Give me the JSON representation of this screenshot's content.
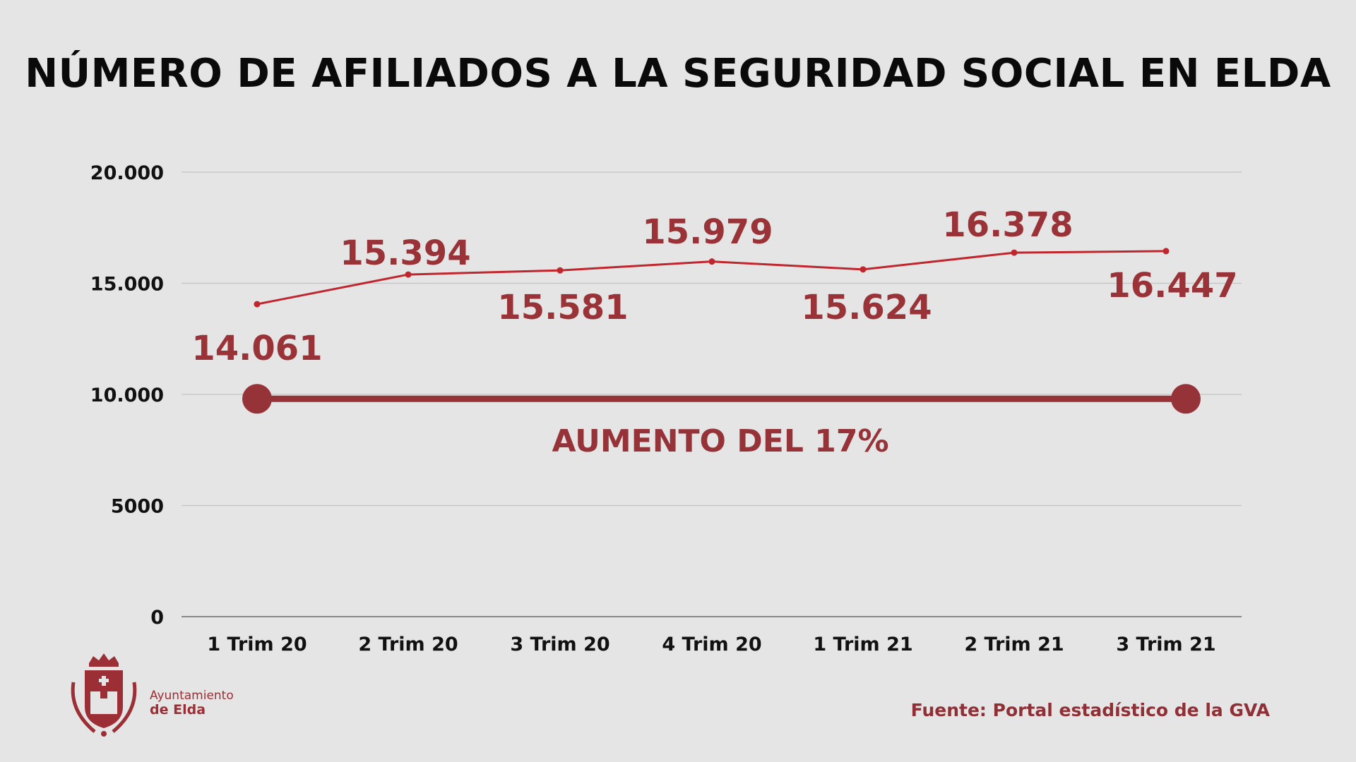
{
  "chart_data": {
    "type": "line",
    "title": "NÚMERO DE AFILIADOS A LA SEGURIDAD SOCIAL EN ELDA",
    "categories": [
      "1 Trim 20",
      "2 Trim 20",
      "3 Trim 20",
      "4 Trim 20",
      "1 Trim 21",
      "2 Trim 21",
      "3 Trim 21"
    ],
    "values": [
      14061,
      15394,
      15581,
      15979,
      15624,
      16378,
      16447
    ],
    "data_labels": [
      "14.061",
      "15.394",
      "15.581",
      "15.979",
      "15.624",
      "16.378",
      "16.447"
    ],
    "ylim": [
      0,
      20000
    ],
    "yticks": [
      0,
      5000,
      10000,
      15000,
      20000
    ],
    "ytick_labels": [
      "0",
      "5000",
      "10.000",
      "15.000",
      "20.000"
    ],
    "grid": true,
    "xlabel": "",
    "ylabel": "",
    "annotation": {
      "text": "AUMENTO DEL 17%",
      "from": "1 Trim 20",
      "to": "3 Trim 21",
      "y": 9800
    },
    "colors": {
      "line": "#c0262d",
      "labels": "#9a3338",
      "annotation": "#963338",
      "grid": "#c4c4c4",
      "background": "#e5e5e5"
    }
  },
  "source": "Fuente: Portal estadístico de la GVA",
  "logo": {
    "line1": "Ayuntamiento",
    "line2": "de Elda"
  }
}
